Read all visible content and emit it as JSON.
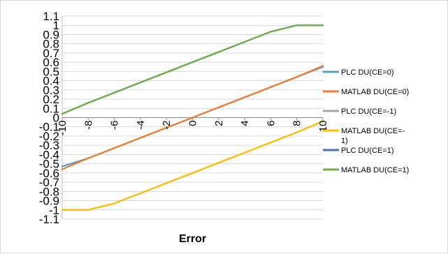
{
  "chart_data": {
    "type": "line",
    "title": "",
    "xlabel": "Error",
    "ylabel": "",
    "xlim": [
      -10,
      10
    ],
    "ylim": [
      -1.1,
      1.1
    ],
    "x_ticks": [
      "-10",
      "-8",
      "-6",
      "-4",
      "-2",
      "0",
      "2",
      "4",
      "6",
      "8",
      "10"
    ],
    "y_ticks": [
      "1.1",
      "1",
      "0.9",
      "0.8",
      "0.7",
      "0.6",
      "0.5",
      "0.4",
      "0.3",
      "0.2",
      "0.1",
      "0",
      "-0.1",
      "-0.2",
      "-0.3",
      "-0.4",
      "-0.5",
      "-0.6",
      "-0.7",
      "-0.8",
      "-0.9",
      "-1",
      "-1.1"
    ],
    "grid": true,
    "legend_position": "right",
    "series": [
      {
        "name": "PLC DU(CE=0)",
        "color": "#5b9bd5",
        "x": [
          -10,
          -8,
          -6,
          -4,
          -2,
          0,
          2,
          4,
          6,
          8,
          10
        ],
        "y": [
          -0.53,
          -0.44,
          -0.33,
          -0.22,
          -0.11,
          0.0,
          0.11,
          0.22,
          0.33,
          0.44,
          0.55
        ]
      },
      {
        "name": "MATLAB DU(CE=0)",
        "color": "#ed7d31",
        "x": [
          -10,
          -8,
          -6,
          -4,
          -2,
          0,
          2,
          4,
          6,
          8,
          10
        ],
        "y": [
          -0.56,
          -0.44,
          -0.33,
          -0.22,
          -0.11,
          0.0,
          0.11,
          0.22,
          0.33,
          0.44,
          0.56
        ]
      },
      {
        "name": "PLC DU(CE=-1)",
        "color": "#a5a5a5",
        "x": [
          -10,
          -8,
          -6,
          -4,
          -2,
          0,
          2,
          4,
          6,
          8,
          10
        ],
        "y": [
          -1.0,
          -1.0,
          -0.93,
          -0.82,
          -0.71,
          -0.6,
          -0.49,
          -0.38,
          -0.27,
          -0.16,
          -0.04
        ]
      },
      {
        "name": "MATLAB DU(CE=-1)",
        "color": "#ffc000",
        "x": [
          -10,
          -8,
          -6,
          -4,
          -2,
          0,
          2,
          4,
          6,
          8,
          10
        ],
        "y": [
          -1.0,
          -1.0,
          -0.93,
          -0.82,
          -0.71,
          -0.6,
          -0.49,
          -0.38,
          -0.27,
          -0.16,
          -0.04
        ]
      },
      {
        "name": "PLC DU(CE=1)",
        "color": "#4472c4",
        "x": [
          -10,
          -8,
          -6,
          -4,
          -2,
          0,
          2,
          4,
          6,
          8,
          10
        ],
        "y": [
          0.04,
          0.16,
          0.27,
          0.38,
          0.49,
          0.6,
          0.71,
          0.82,
          0.93,
          1.0,
          1.0
        ]
      },
      {
        "name": "MATLAB DU(CE=1)",
        "color": "#70ad47",
        "x": [
          -10,
          -8,
          -6,
          -4,
          -2,
          0,
          2,
          4,
          6,
          8,
          10
        ],
        "y": [
          0.04,
          0.16,
          0.27,
          0.38,
          0.49,
          0.6,
          0.71,
          0.82,
          0.93,
          1.0,
          1.0
        ]
      }
    ]
  }
}
